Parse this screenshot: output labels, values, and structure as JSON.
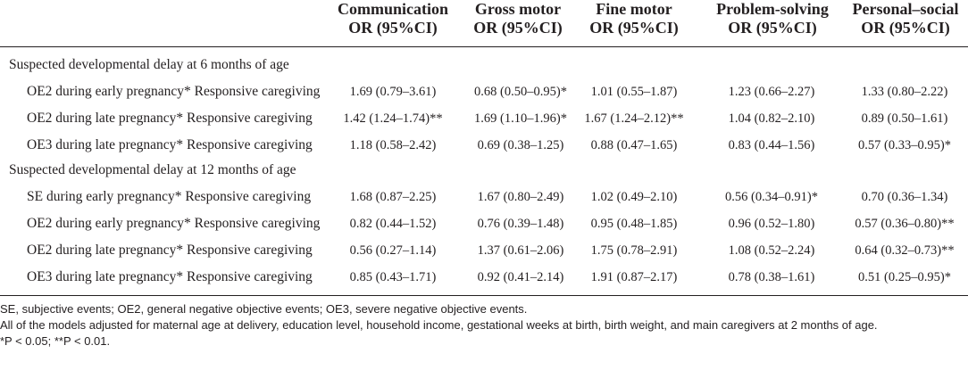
{
  "columns": [
    {
      "name": "Communication",
      "stat": "OR (95%CI)"
    },
    {
      "name": "Gross motor",
      "stat": "OR (95%CI)"
    },
    {
      "name": "Fine motor",
      "stat": "OR (95%CI)"
    },
    {
      "name": "Problem-solving",
      "stat": "OR (95%CI)"
    },
    {
      "name": "Personal–social",
      "stat": "OR (95%CI)"
    }
  ],
  "sections": [
    {
      "title": "Suspected developmental delay at 6 months of age",
      "rows": [
        {
          "label": "OE2 during early pregnancy* Responsive caregiving",
          "values": [
            "1.69 (0.79–3.61)",
            "0.68 (0.50–0.95)*",
            "1.01 (0.55–1.87)",
            "1.23 (0.66–2.27)",
            "1.33 (0.80–2.22)"
          ]
        },
        {
          "label": "OE2 during late pregnancy* Responsive caregiving",
          "values": [
            "1.42 (1.24–1.74)**",
            "1.69 (1.10–1.96)*",
            "1.67 (1.24–2.12)**",
            "1.04 (0.82–2.10)",
            "0.89 (0.50–1.61)"
          ]
        },
        {
          "label": "OE3 during late pregnancy* Responsive caregiving",
          "values": [
            "1.18 (0.58–2.42)",
            "0.69 (0.38–1.25)",
            "0.88 (0.47–1.65)",
            "0.83 (0.44–1.56)",
            "0.57 (0.33–0.95)*"
          ]
        }
      ]
    },
    {
      "title": "Suspected developmental delay at 12 months of age",
      "rows": [
        {
          "label": "SE during early pregnancy* Responsive caregiving",
          "values": [
            "1.68 (0.87–2.25)",
            "1.67 (0.80–2.49)",
            "1.02 (0.49–2.10)",
            "0.56 (0.34–0.91)*",
            "0.70 (0.36–1.34)"
          ]
        },
        {
          "label": "OE2 during early pregnancy* Responsive caregiving",
          "values": [
            "0.82 (0.44–1.52)",
            "0.76 (0.39–1.48)",
            "0.95 (0.48–1.85)",
            "0.96 (0.52–1.80)",
            "0.57 (0.36–0.80)**"
          ]
        },
        {
          "label": "OE2 during late pregnancy* Responsive caregiving",
          "values": [
            "0.56 (0.27–1.14)",
            "1.37 (0.61–2.06)",
            "1.75 (0.78–2.91)",
            "1.08 (0.52–2.24)",
            "0.64 (0.32–0.73)**"
          ]
        },
        {
          "label": "OE3 during late pregnancy* Responsive caregiving",
          "values": [
            "0.85 (0.43–1.71)",
            "0.92 (0.41–2.14)",
            "1.91 (0.87–2.17)",
            "0.78 (0.38–1.61)",
            "0.51 (0.25–0.95)*"
          ]
        }
      ]
    }
  ],
  "notes": [
    "SE, subjective events; OE2, general negative objective events; OE3, severe negative objective events.",
    "All of the models adjusted for maternal age at delivery, education level, household income, gestational weeks at birth, birth weight, and main caregivers at 2 months of age.",
    "*P < 0.05; **P < 0.01."
  ]
}
